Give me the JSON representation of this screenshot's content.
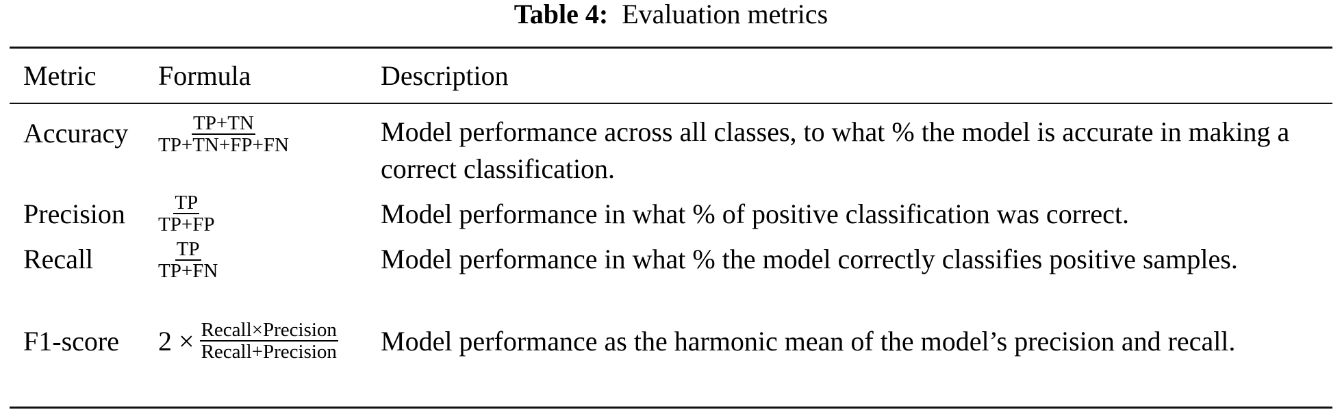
{
  "caption": {
    "label": "Table 4:",
    "text": "Evaluation metrics"
  },
  "headers": [
    "Metric",
    "Formula",
    "Description"
  ],
  "rows": [
    {
      "metric": "Accuracy",
      "prefix": "",
      "numerator": "TP+TN",
      "denominator": "TP+TN+FP+FN",
      "description": "Model performance across all classes, to what % the model is accurate in making a correct classification."
    },
    {
      "metric": "Precision",
      "prefix": "",
      "numerator": "TP",
      "denominator": "TP+FP",
      "description": "Model performance in what % of positive classification was correct."
    },
    {
      "metric": "Recall",
      "prefix": "",
      "numerator": "TP",
      "denominator": "TP+FN",
      "description": "Model performance in what % the model correctly classifies positive samples."
    },
    {
      "metric": "F1-score",
      "prefix": "2 ×",
      "numerator": "Recall×Precision",
      "denominator": "Recall+Precision",
      "description": "Model performance as the harmonic mean of the model’s precision and recall."
    }
  ]
}
